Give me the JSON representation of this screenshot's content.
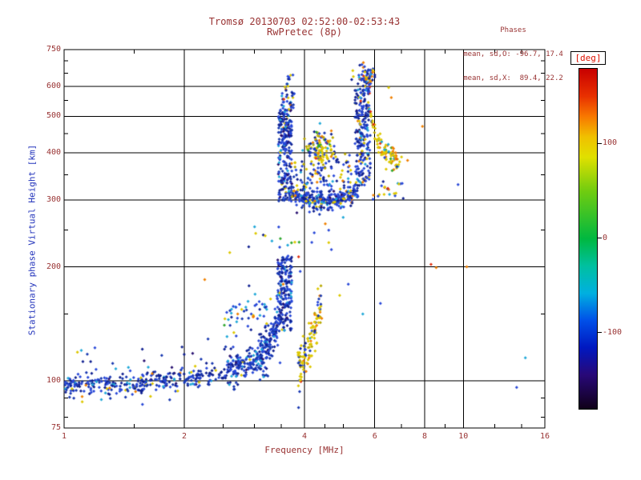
{
  "chart_data": {
    "type": "scatter",
    "title": "Tromsø 20130703 02:52:00-02:53:43",
    "subtitle": "RwPretec (8p)",
    "stats": {
      "title": "Phases",
      "o_line": "mean, sd,O: -96.7, 17.4",
      "x_line": "mean, sd,X:  89.4, 22.2"
    },
    "xlabel": "Frequency [MHz]",
    "ylabel": "Stationary phase Virtual Height [km]",
    "x_scale": "log",
    "y_scale": "log",
    "x_range": [
      1,
      16
    ],
    "y_range": [
      75,
      750
    ],
    "x_ticks": [
      1,
      2,
      4,
      6,
      8,
      10,
      16
    ],
    "x_gridlines": [
      2,
      4,
      6,
      8,
      10
    ],
    "x_minor": [
      1.5,
      2.5,
      3,
      3.5,
      4.5,
      5,
      7,
      9,
      12,
      14
    ],
    "y_ticks": [
      75,
      100,
      200,
      300,
      400,
      500,
      600,
      750
    ],
    "y_gridlines": [
      100,
      200,
      300,
      400,
      500,
      600
    ],
    "y_minor": [
      80,
      90,
      150,
      250,
      350,
      450,
      550,
      650,
      700
    ],
    "colors": {
      "text": "#993333",
      "axis_label": "#2233bb",
      "deg_label": "#dd1100",
      "frame": "#000000",
      "background": "#ffffff"
    },
    "colorbar": {
      "label": "[deg]",
      "range": [
        -180,
        180
      ],
      "ticks": [
        100,
        0,
        -100
      ],
      "stops": [
        {
          "pos": 0,
          "color": "#c80000"
        },
        {
          "pos": 8,
          "color": "#e83000"
        },
        {
          "pos": 14,
          "color": "#f87800"
        },
        {
          "pos": 20,
          "color": "#f0c000"
        },
        {
          "pos": 26,
          "color": "#e0e000"
        },
        {
          "pos": 36,
          "color": "#70cc10"
        },
        {
          "pos": 50,
          "color": "#00b840"
        },
        {
          "pos": 58,
          "color": "#00c0a0"
        },
        {
          "pos": 66,
          "color": "#00b0e0"
        },
        {
          "pos": 74,
          "color": "#0050e8"
        },
        {
          "pos": 82,
          "color": "#0018c0"
        },
        {
          "pos": 90,
          "color": "#280878"
        },
        {
          "pos": 100,
          "color": "#100018"
        }
      ]
    },
    "palette": {
      "red": "#e03010",
      "orange": "#f08000",
      "yellow": "#ddc800",
      "gold": "#b8a800",
      "green": "#30a830",
      "cyan": "#20a8d8",
      "blue": "#2848d8",
      "mblue": "#1838b0",
      "navy": "#102090",
      "dark": "#281070"
    },
    "clusters": [
      {
        "name": "e-band",
        "kind": "band",
        "n": 320,
        "f": [
          1.0,
          2.55
        ],
        "path": [
          [
            1.0,
            97
          ],
          [
            1.7,
            99
          ],
          [
            2.55,
            104
          ]
        ],
        "spread": 3.5,
        "colors": {
          "navy": 30,
          "mblue": 25,
          "blue": 30,
          "cyan": 8,
          "dark": 4,
          "yellow": 2,
          "orange": 1
        }
      },
      {
        "name": "e-band-2",
        "kind": "band",
        "n": 150,
        "f": [
          2.55,
          3.15
        ],
        "path": [
          [
            2.55,
            105
          ],
          [
            3.15,
            116
          ]
        ],
        "spread": 5,
        "colors": {
          "blue": 40,
          "mblue": 25,
          "navy": 20,
          "cyan": 10,
          "yellow": 3,
          "dark": 2
        }
      },
      {
        "name": "e-rise",
        "kind": "band",
        "n": 150,
        "f": [
          3.1,
          3.5
        ],
        "path": [
          [
            3.1,
            116
          ],
          [
            3.3,
            128
          ],
          [
            3.5,
            152
          ]
        ],
        "spread": 9,
        "colors": {
          "blue": 40,
          "mblue": 25,
          "navy": 20,
          "cyan": 10,
          "dark": 3,
          "yellow": 2
        }
      },
      {
        "name": "e-cusp",
        "kind": "column",
        "n": 190,
        "f": [
          3.42,
          3.72
        ],
        "h": [
          135,
          212
        ],
        "colors": {
          "blue": 38,
          "mblue": 25,
          "navy": 22,
          "cyan": 8,
          "dark": 5,
          "yellow": 2
        }
      },
      {
        "name": "e-upper-scatter",
        "kind": "band",
        "n": 48,
        "f": [
          2.5,
          3.25
        ],
        "path": [
          [
            2.5,
            143
          ],
          [
            3.25,
            152
          ]
        ],
        "spread": 9,
        "colors": {
          "cyan": 20,
          "blue": 35,
          "mblue": 15,
          "navy": 10,
          "yellow": 12,
          "orange": 5,
          "green": 3
        }
      },
      {
        "name": "x-lower",
        "kind": "band",
        "n": 120,
        "f": [
          3.85,
          4.42
        ],
        "path": [
          [
            3.85,
            107
          ],
          [
            4.1,
            122
          ],
          [
            4.28,
            142
          ],
          [
            4.42,
            162
          ]
        ],
        "spread": 8,
        "colors": {
          "yellow": 45,
          "gold": 12,
          "orange": 12,
          "blue": 12,
          "mblue": 8,
          "navy": 5,
          "cyan": 3,
          "red": 3
        }
      },
      {
        "name": "e-above-band",
        "kind": "band",
        "n": 34,
        "f": [
          1.1,
          3.2
        ],
        "path": [
          [
            1.1,
            112
          ],
          [
            3.2,
            124
          ]
        ],
        "spread": 7,
        "colors": {
          "blue": 35,
          "mblue": 20,
          "navy": 25,
          "cyan": 10,
          "dark": 10
        }
      },
      {
        "name": "mid-sparse",
        "kind": "band",
        "n": 26,
        "f": [
          2.9,
          5.1
        ],
        "path": [
          [
            2.9,
            215
          ],
          [
            5.1,
            250
          ]
        ],
        "spread": 25,
        "colors": {
          "blue": 30,
          "cyan": 20,
          "yellow": 20,
          "navy": 10,
          "orange": 10,
          "green": 5,
          "red": 5
        }
      },
      {
        "name": "f-cusp-left",
        "kind": "column",
        "n": 240,
        "f": [
          3.44,
          3.72
        ],
        "h": [
          298,
          520
        ],
        "colors": {
          "blue": 35,
          "mblue": 25,
          "navy": 22,
          "cyan": 6,
          "dark": 6,
          "yellow": 4,
          "orange": 2
        }
      },
      {
        "name": "f-cusp-left-top",
        "kind": "column",
        "n": 45,
        "f": [
          3.5,
          3.78
        ],
        "h": [
          520,
          645
        ],
        "colors": {
          "blue": 30,
          "mblue": 20,
          "navy": 20,
          "cyan": 10,
          "yellow": 10,
          "orange": 5,
          "red": 5
        }
      },
      {
        "name": "f-band",
        "kind": "band",
        "n": 280,
        "f": [
          3.7,
          5.45
        ],
        "path": [
          [
            3.7,
            312
          ],
          [
            4.1,
            300
          ],
          [
            4.7,
            300
          ],
          [
            5.1,
            306
          ],
          [
            5.45,
            318
          ]
        ],
        "spread": 9,
        "colors": {
          "blue": 35,
          "mblue": 22,
          "navy": 20,
          "cyan": 6,
          "dark": 4,
          "yellow": 9,
          "orange": 3,
          "gold": 1
        }
      },
      {
        "name": "f-band-fuzz",
        "kind": "band",
        "n": 100,
        "f": [
          3.75,
          5.3
        ],
        "path": [
          [
            3.75,
            340
          ],
          [
            4.5,
            345
          ],
          [
            5.3,
            355
          ]
        ],
        "spread": 20,
        "colors": {
          "blue": 30,
          "mblue": 20,
          "navy": 15,
          "cyan": 10,
          "yellow": 15,
          "gold": 5,
          "orange": 5
        }
      },
      {
        "name": "f-yellow-mid",
        "kind": "blob",
        "n": 120,
        "cf": 4.42,
        "ch": 415,
        "sf": 0.045,
        "sh": 0.055,
        "colors": {
          "yellow": 35,
          "gold": 15,
          "green": 8,
          "orange": 8,
          "blue": 12,
          "mblue": 8,
          "navy": 6,
          "cyan": 5,
          "red": 3
        }
      },
      {
        "name": "f-cusp-right",
        "kind": "column",
        "n": 250,
        "f": [
          5.35,
          5.85
        ],
        "h": [
          328,
          630
        ],
        "colors": {
          "blue": 33,
          "mblue": 22,
          "navy": 22,
          "cyan": 5,
          "dark": 6,
          "yellow": 8,
          "orange": 3,
          "red": 1
        }
      },
      {
        "name": "f-cusp-right-top",
        "kind": "blob",
        "n": 55,
        "cf": 5.68,
        "ch": 640,
        "sf": 0.035,
        "sh": 0.035,
        "colors": {
          "blue": 25,
          "mblue": 15,
          "navy": 15,
          "yellow": 18,
          "orange": 12,
          "red": 8,
          "cyan": 7
        }
      },
      {
        "name": "x-right-arc",
        "kind": "band",
        "n": 95,
        "f": [
          5.85,
          6.95
        ],
        "path": [
          [
            5.85,
            500
          ],
          [
            6.1,
            430
          ],
          [
            6.45,
            395
          ],
          [
            6.95,
            378
          ]
        ],
        "spread": 13,
        "colors": {
          "yellow": 45,
          "gold": 12,
          "orange": 15,
          "red": 8,
          "green": 5,
          "cyan": 4,
          "blue": 8,
          "mblue": 3
        }
      },
      {
        "name": "f-right-sparse",
        "kind": "band",
        "n": 22,
        "f": [
          5.9,
          7.1
        ],
        "path": [
          [
            5.9,
            310
          ],
          [
            7.1,
            330
          ]
        ],
        "spread": 14,
        "colors": {
          "yellow": 30,
          "blue": 25,
          "cyan": 15,
          "orange": 15,
          "navy": 10,
          "red": 5
        }
      }
    ],
    "outliers": [
      [
        1.08,
        119,
        "yellow"
      ],
      [
        1.3,
        92,
        "navy"
      ],
      [
        2.25,
        185,
        "orange"
      ],
      [
        2.6,
        218,
        "yellow"
      ],
      [
        3.0,
        255,
        "cyan"
      ],
      [
        4.6,
        250,
        "blue"
      ],
      [
        5.0,
        270,
        "cyan"
      ],
      [
        6.6,
        560,
        "orange"
      ],
      [
        6.5,
        595,
        "yellow"
      ],
      [
        7.0,
        390,
        "yellow"
      ],
      [
        7.25,
        382,
        "orange"
      ],
      [
        7.9,
        470,
        "orange"
      ],
      [
        8.3,
        203,
        "red"
      ],
      [
        8.55,
        199,
        "orange"
      ],
      [
        10.2,
        200,
        "orange"
      ],
      [
        9.7,
        330,
        "blue"
      ],
      [
        14.3,
        115,
        "cyan"
      ],
      [
        13.6,
        96,
        "blue"
      ],
      [
        6.2,
        160,
        "blue"
      ],
      [
        5.6,
        150,
        "cyan"
      ],
      [
        4.9,
        168,
        "yellow"
      ],
      [
        5.15,
        180,
        "blue"
      ]
    ]
  }
}
